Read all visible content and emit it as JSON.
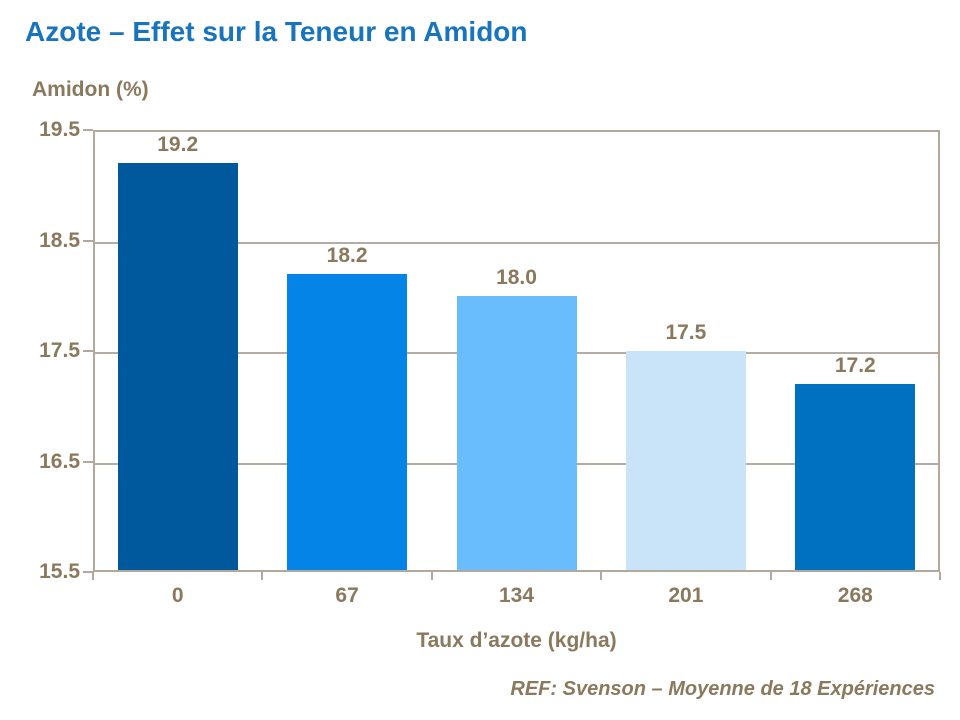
{
  "chart_data": {
    "type": "bar",
    "title": "Azote – Effet sur la Teneur en Amidon",
    "ylabel": "Amidon (%)",
    "xlabel": "Taux d’azote (kg/ha)",
    "categories": [
      "0",
      "67",
      "134",
      "201",
      "268"
    ],
    "values": [
      19.2,
      18.2,
      18.0,
      17.5,
      17.2
    ],
    "value_labels": [
      "19.2",
      "18.2",
      "18.0",
      "17.5",
      "17.2"
    ],
    "bar_colors": [
      "#00599C",
      "#0484E6",
      "#6ABDFD",
      "#C9E3F9",
      "#0071C0"
    ],
    "ylim": [
      15.5,
      19.5
    ],
    "yticks": [
      19.5,
      18.5,
      17.5,
      16.5,
      15.5
    ],
    "ytick_labels": [
      "19.5",
      "18.5",
      "17.5",
      "16.5",
      "15.5"
    ],
    "grid": true,
    "legend": false,
    "annotation": "REF: Svenson – Moyenne de 18 Expériences",
    "colors": {
      "title_text": "#1874BD",
      "axis_text": "#8A795D",
      "plot_border": "#B2A89B",
      "gridline": "#B5ADA3",
      "background": "#FFFFFF"
    }
  }
}
